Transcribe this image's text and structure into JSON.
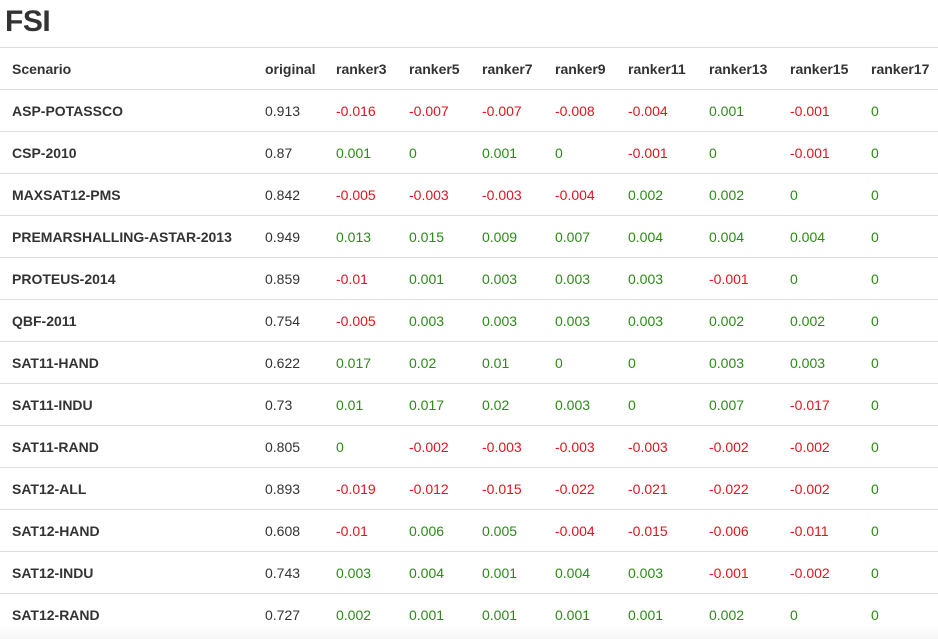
{
  "title": "FSI",
  "columns": [
    "Scenario",
    "original",
    "ranker3",
    "ranker5",
    "ranker7",
    "ranker9",
    "ranker11",
    "ranker13",
    "ranker15",
    "ranker17"
  ],
  "rows": [
    {
      "scenario": "ASP-POTASSCO",
      "original": "0.913",
      "values": [
        "-0.016",
        "-0.007",
        "-0.007",
        "-0.008",
        "-0.004",
        "0.001",
        "-0.001",
        "0"
      ]
    },
    {
      "scenario": "CSP-2010",
      "original": "0.87",
      "values": [
        "0.001",
        "0",
        "0.001",
        "0",
        "-0.001",
        "0",
        "-0.001",
        "0"
      ]
    },
    {
      "scenario": "MAXSAT12-PMS",
      "original": "0.842",
      "values": [
        "-0.005",
        "-0.003",
        "-0.003",
        "-0.004",
        "0.002",
        "0.002",
        "0",
        "0"
      ]
    },
    {
      "scenario": "PREMARSHALLING-ASTAR-2013",
      "original": "0.949",
      "values": [
        "0.013",
        "0.015",
        "0.009",
        "0.007",
        "0.004",
        "0.004",
        "0.004",
        "0"
      ]
    },
    {
      "scenario": "PROTEUS-2014",
      "original": "0.859",
      "values": [
        "-0.01",
        "0.001",
        "0.003",
        "0.003",
        "0.003",
        "-0.001",
        "0",
        "0"
      ]
    },
    {
      "scenario": "QBF-2011",
      "original": "0.754",
      "values": [
        "-0.005",
        "0.003",
        "0.003",
        "0.003",
        "0.003",
        "0.002",
        "0.002",
        "0"
      ]
    },
    {
      "scenario": "SAT11-HAND",
      "original": "0.622",
      "values": [
        "0.017",
        "0.02",
        "0.01",
        "0",
        "0",
        "0.003",
        "0.003",
        "0"
      ]
    },
    {
      "scenario": "SAT11-INDU",
      "original": "0.73",
      "values": [
        "0.01",
        "0.017",
        "0.02",
        "0.003",
        "0",
        "0.007",
        "-0.017",
        "0"
      ]
    },
    {
      "scenario": "SAT11-RAND",
      "original": "0.805",
      "values": [
        "0",
        "-0.002",
        "-0.003",
        "-0.003",
        "-0.003",
        "-0.002",
        "-0.002",
        "0"
      ]
    },
    {
      "scenario": "SAT12-ALL",
      "original": "0.893",
      "values": [
        "-0.019",
        "-0.012",
        "-0.015",
        "-0.022",
        "-0.021",
        "-0.022",
        "-0.002",
        "0"
      ]
    },
    {
      "scenario": "SAT12-HAND",
      "original": "0.608",
      "values": [
        "-0.01",
        "0.006",
        "0.005",
        "-0.004",
        "-0.015",
        "-0.006",
        "-0.011",
        "0"
      ]
    },
    {
      "scenario": "SAT12-INDU",
      "original": "0.743",
      "values": [
        "0.003",
        "0.004",
        "0.001",
        "0.004",
        "0.003",
        "-0.001",
        "-0.002",
        "0"
      ]
    },
    {
      "scenario": "SAT12-RAND",
      "original": "0.727",
      "values": [
        "0.002",
        "0.001",
        "0.001",
        "0.001",
        "0.001",
        "0.002",
        "0",
        "0"
      ]
    }
  ],
  "colors": {
    "positive": "#2c8a18",
    "negative": "#e2141d",
    "text": "#333333",
    "border": "#dddddd"
  }
}
